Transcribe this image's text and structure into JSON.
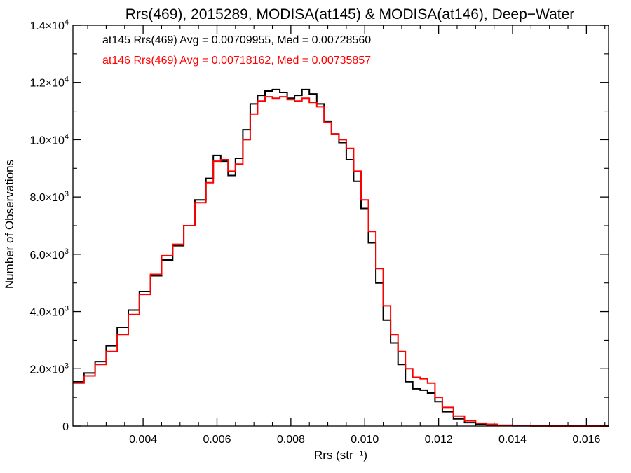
{
  "chart_data": {
    "type": "line",
    "title": "Rrs(469), 2015289, MODISA(at145) & MODISA(at146), Deep−Water",
    "xlabel": "Rrs (str⁻¹)",
    "ylabel": "Number of Observations",
    "xlim": [
      0.0021,
      0.0166
    ],
    "ylim": [
      0,
      14000
    ],
    "xticks": [
      {
        "value": 0.004,
        "label": "0.004"
      },
      {
        "value": 0.006,
        "label": "0.006"
      },
      {
        "value": 0.008,
        "label": "0.008"
      },
      {
        "value": 0.01,
        "label": "0.010"
      },
      {
        "value": 0.012,
        "label": "0.012"
      },
      {
        "value": 0.014,
        "label": "0.014"
      },
      {
        "value": 0.016,
        "label": "0.016"
      }
    ],
    "yticks": [
      {
        "value": 0,
        "mant": "0",
        "exp": ""
      },
      {
        "value": 2000,
        "mant": "2.0×10",
        "exp": "3"
      },
      {
        "value": 4000,
        "mant": "4.0×10",
        "exp": "3"
      },
      {
        "value": 6000,
        "mant": "6.0×10",
        "exp": "3"
      },
      {
        "value": 8000,
        "mant": "8.0×10",
        "exp": "3"
      },
      {
        "value": 10000,
        "mant": "1.0×10",
        "exp": "4"
      },
      {
        "value": 12000,
        "mant": "1.2×10",
        "exp": "4"
      },
      {
        "value": 14000,
        "mant": "1.4×10",
        "exp": "4"
      }
    ],
    "annotations": [
      {
        "text": "at145 Rrs(469) Avg = 0.00709955, Med = 0.00728560",
        "color": "#000000"
      },
      {
        "text": "at146 Rrs(469) Avg = 0.00718162, Med = 0.00735857",
        "color": "#ff0000"
      }
    ],
    "series": [
      {
        "color": "#000000",
        "x": [
          0.0021,
          0.0024,
          0.0027,
          0.003,
          0.0033,
          0.0036,
          0.0039,
          0.0042,
          0.0045,
          0.0048,
          0.0051,
          0.0054,
          0.0057,
          0.0059,
          0.0061,
          0.0063,
          0.0065,
          0.0067,
          0.0069,
          0.0071,
          0.0073,
          0.0075,
          0.0077,
          0.0079,
          0.0081,
          0.0083,
          0.0085,
          0.0087,
          0.0089,
          0.0091,
          0.0093,
          0.0095,
          0.0097,
          0.0099,
          0.0101,
          0.0103,
          0.0105,
          0.0107,
          0.0109,
          0.0111,
          0.0113,
          0.0115,
          0.0117,
          0.0119,
          0.0121,
          0.0124,
          0.0127,
          0.013,
          0.0133,
          0.0136,
          0.014,
          0.0145,
          0.015,
          0.016,
          0.0166
        ],
        "y": [
          1550,
          1850,
          2250,
          2800,
          3450,
          4050,
          4700,
          5250,
          5800,
          6300,
          7000,
          7900,
          8650,
          9450,
          9250,
          8750,
          9350,
          10350,
          11250,
          11550,
          11700,
          11750,
          11650,
          11450,
          11550,
          11750,
          11600,
          11250,
          10650,
          10200,
          9900,
          9300,
          8550,
          7600,
          6400,
          5000,
          3700,
          2900,
          2150,
          1550,
          1300,
          1250,
          1150,
          850,
          500,
          250,
          120,
          70,
          40,
          20,
          10,
          5,
          0,
          0,
          0
        ]
      },
      {
        "color": "#ff0000",
        "x": [
          0.0021,
          0.0024,
          0.0027,
          0.003,
          0.0033,
          0.0036,
          0.0039,
          0.0042,
          0.0045,
          0.0048,
          0.0051,
          0.0054,
          0.0057,
          0.0059,
          0.0061,
          0.0063,
          0.0065,
          0.0067,
          0.0069,
          0.0071,
          0.0073,
          0.0075,
          0.0077,
          0.0079,
          0.0081,
          0.0083,
          0.0085,
          0.0087,
          0.0089,
          0.0091,
          0.0093,
          0.0095,
          0.0097,
          0.0099,
          0.0101,
          0.0103,
          0.0105,
          0.0107,
          0.0109,
          0.0111,
          0.0113,
          0.0115,
          0.0117,
          0.0119,
          0.0121,
          0.0124,
          0.0127,
          0.013,
          0.0133,
          0.0136,
          0.014,
          0.0145,
          0.015,
          0.016,
          0.0166
        ],
        "y": [
          1500,
          1750,
          2150,
          2600,
          3200,
          3900,
          4600,
          5300,
          5950,
          6350,
          7000,
          7800,
          8500,
          9250,
          9300,
          8900,
          9150,
          10000,
          10900,
          11350,
          11500,
          11450,
          11500,
          11400,
          11350,
          11450,
          11300,
          11150,
          10600,
          10200,
          10000,
          9700,
          8900,
          7900,
          6800,
          5500,
          4200,
          3200,
          2600,
          2000,
          1700,
          1650,
          1500,
          1000,
          650,
          350,
          180,
          100,
          60,
          30,
          15,
          8,
          0,
          0,
          0
        ]
      }
    ],
    "grid": false,
    "legend": "top-left"
  }
}
